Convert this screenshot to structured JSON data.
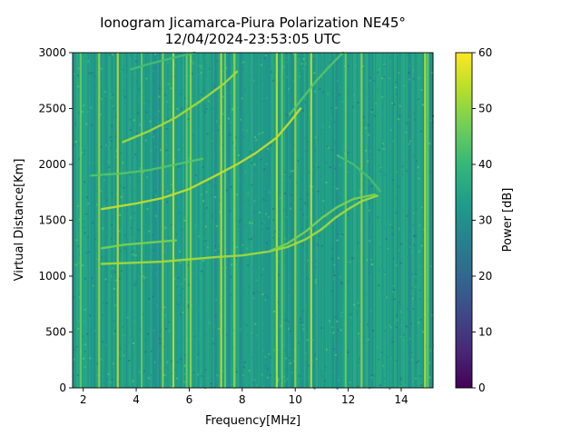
{
  "chart_data": {
    "type": "heatmap",
    "title": [
      "Ionogram Jicamarca-Piura Polarization NE45°",
      "12/04/2024-23:53:05 UTC"
    ],
    "xlabel": "Frequency[MHz]",
    "ylabel": "Virtual Distance[Km]",
    "xlim": [
      1.6,
      15.2
    ],
    "ylim": [
      0,
      3000
    ],
    "xticks": [
      2,
      4,
      6,
      8,
      10,
      12,
      14
    ],
    "xtick_labels": [
      "2",
      "4",
      "6",
      "8",
      "10",
      "12",
      "14"
    ],
    "yticks": [
      0,
      500,
      1000,
      1500,
      2000,
      2500,
      3000
    ],
    "ytick_labels": [
      "0",
      "500",
      "1000",
      "1500",
      "2000",
      "2500",
      "3000"
    ],
    "colorbar": {
      "label": "Power [dB]",
      "range": [
        0,
        60
      ],
      "ticks": [
        0,
        10,
        20,
        30,
        40,
        50,
        60
      ],
      "tick_labels": [
        "0",
        "10",
        "20",
        "30",
        "40",
        "50",
        "60"
      ],
      "colormap": [
        "#440154",
        "#482878",
        "#3e4989",
        "#31688e",
        "#26828e",
        "#1f9e89",
        "#35b779",
        "#6ece58",
        "#b5de2b",
        "#fde725"
      ]
    },
    "background_level_db": 33,
    "vertical_interference_lines_mhz": [
      1.9,
      2.6,
      3.3,
      4.2,
      5.0,
      5.4,
      5.9,
      6.05,
      7.2,
      7.35,
      7.7,
      9.3,
      9.5,
      10.0,
      10.6,
      11.9,
      12.5,
      14.9,
      15.0
    ],
    "traces": [
      {
        "points": [
          [
            2.7,
            1110
          ],
          [
            4,
            1120
          ],
          [
            5,
            1130
          ],
          [
            6,
            1150
          ],
          [
            7,
            1170
          ],
          [
            8,
            1185
          ],
          [
            9,
            1220
          ],
          [
            9.7,
            1260
          ],
          [
            10.4,
            1330
          ],
          [
            11,
            1420
          ],
          [
            11.5,
            1520
          ],
          [
            12,
            1600
          ],
          [
            12.5,
            1670
          ],
          [
            13.1,
            1720
          ]
        ],
        "power_db": 52
      },
      {
        "points": [
          [
            9,
            1220
          ],
          [
            9.7,
            1290
          ],
          [
            10.4,
            1400
          ],
          [
            11,
            1520
          ],
          [
            11.6,
            1620
          ],
          [
            12.2,
            1690
          ],
          [
            13,
            1730
          ]
        ],
        "power_db": 48
      },
      {
        "points": [
          [
            2.7,
            1600
          ],
          [
            4,
            1650
          ],
          [
            5,
            1700
          ],
          [
            6,
            1780
          ],
          [
            7,
            1900
          ],
          [
            7.8,
            2000
          ],
          [
            8.5,
            2100
          ],
          [
            9.3,
            2240
          ],
          [
            9.8,
            2380
          ],
          [
            10.2,
            2500
          ]
        ],
        "power_db": 55
      },
      {
        "points": [
          [
            2.3,
            1900
          ],
          [
            3.5,
            1920
          ],
          [
            4.5,
            1950
          ],
          [
            5.5,
            2000
          ],
          [
            6.5,
            2050
          ]
        ],
        "power_db": 44
      },
      {
        "points": [
          [
            2.7,
            1250
          ],
          [
            3.5,
            1280
          ],
          [
            4.5,
            1300
          ],
          [
            5.5,
            1320
          ]
        ],
        "power_db": 48
      },
      {
        "points": [
          [
            3.5,
            2200
          ],
          [
            4.5,
            2300
          ],
          [
            5.5,
            2420
          ],
          [
            6.5,
            2580
          ],
          [
            7.3,
            2720
          ],
          [
            7.8,
            2830
          ]
        ],
        "power_db": 52
      },
      {
        "points": [
          [
            3.8,
            2850
          ],
          [
            4.5,
            2900
          ],
          [
            5.5,
            2960
          ],
          [
            6.2,
            3000
          ]
        ],
        "power_db": 42
      },
      {
        "points": [
          [
            9.8,
            2450
          ],
          [
            10.3,
            2600
          ],
          [
            10.8,
            2750
          ],
          [
            11.3,
            2880
          ],
          [
            11.8,
            3000
          ]
        ],
        "power_db": 44
      },
      {
        "points": [
          [
            11.6,
            2080
          ],
          [
            12.2,
            2000
          ],
          [
            12.8,
            1880
          ],
          [
            13.2,
            1760
          ]
        ],
        "power_db": 42
      }
    ]
  }
}
